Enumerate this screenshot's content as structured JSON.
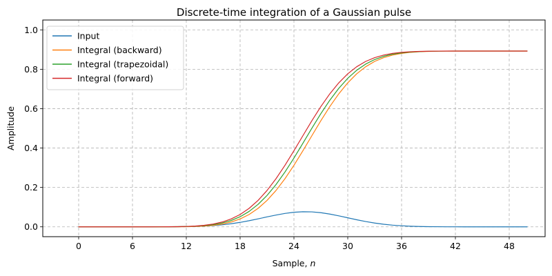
{
  "chart_data": {
    "type": "line",
    "title": "Discrete-time integration of a Gaussian pulse",
    "xlabel_prefix": "Sample, ",
    "xlabel_var": "n",
    "ylabel": "Amplitude",
    "xlim": [
      -4,
      52
    ],
    "ylim": [
      -0.05,
      1.05
    ],
    "xticks": [
      0,
      6,
      12,
      18,
      24,
      30,
      36,
      42,
      48
    ],
    "yticks": [
      0.0,
      0.2,
      0.4,
      0.6,
      0.8,
      1.0
    ],
    "grid": true,
    "legend_position": "top-left",
    "x": [
      0,
      1,
      2,
      3,
      4,
      5,
      6,
      7,
      8,
      9,
      10,
      11,
      12,
      13,
      14,
      15,
      16,
      17,
      18,
      19,
      20,
      21,
      22,
      23,
      24,
      25,
      26,
      27,
      28,
      29,
      30,
      31,
      32,
      33,
      34,
      35,
      36,
      37,
      38,
      39,
      40,
      41,
      42,
      43,
      44,
      45,
      46,
      47,
      48,
      49,
      50
    ],
    "series": [
      {
        "name": "Input",
        "color": "#1f77b4",
        "values": [
          0.0,
          0.0,
          0.0,
          0.0,
          0.0,
          0.0,
          0.0,
          0.0,
          0.0,
          0.0001,
          0.0002,
          0.0005,
          0.0011,
          0.0021,
          0.0038,
          0.0064,
          0.0102,
          0.0156,
          0.0226,
          0.031,
          0.0405,
          0.0504,
          0.0598,
          0.068,
          0.0739,
          0.0766,
          0.0759,
          0.0718,
          0.0648,
          0.0558,
          0.0459,
          0.0359,
          0.0269,
          0.0192,
          0.0131,
          0.0085,
          0.0053,
          0.0031,
          0.0017,
          0.0009,
          0.0005,
          0.0002,
          0.0001,
          0.0,
          0.0,
          0.0,
          0.0,
          0.0,
          0.0,
          0.0,
          0.0
        ]
      },
      {
        "name": "Integral (backward)",
        "color": "#ff7f0e",
        "values": [
          0.0,
          0.0,
          0.0,
          0.0,
          0.0,
          0.0,
          0.0,
          0.0,
          0.0,
          0.0,
          0.0001,
          0.0003,
          0.0008,
          0.0019,
          0.004,
          0.0078,
          0.0142,
          0.0244,
          0.04,
          0.0626,
          0.0936,
          0.1341,
          0.1845,
          0.2443,
          0.3123,
          0.3862,
          0.4628,
          0.5387,
          0.6105,
          0.6753,
          0.7311,
          0.777,
          0.8129,
          0.8398,
          0.859,
          0.8721,
          0.8806,
          0.8859,
          0.889,
          0.8907,
          0.8916,
          0.8921,
          0.8923,
          0.8924,
          0.8924,
          0.8924,
          0.8924,
          0.8924,
          0.8924,
          0.8924,
          0.8924
        ]
      },
      {
        "name": "Integral (trapezoidal)",
        "color": "#2ca02c",
        "values": [
          0.0,
          0.0,
          0.0,
          0.0,
          0.0,
          0.0,
          0.0,
          0.0,
          0.0,
          0.0001,
          0.0003,
          0.0008,
          0.0016,
          0.0032,
          0.0061,
          0.011,
          0.0193,
          0.0322,
          0.0513,
          0.0781,
          0.1139,
          0.1593,
          0.2144,
          0.2783,
          0.3492,
          0.4245,
          0.5008,
          0.5746,
          0.6429,
          0.7032,
          0.7541,
          0.795,
          0.8264,
          0.8494,
          0.8656,
          0.8764,
          0.8832,
          0.8874,
          0.8898,
          0.8912,
          0.8919,
          0.8922,
          0.8924,
          0.8924,
          0.8924,
          0.8924,
          0.8924,
          0.8924,
          0.8924,
          0.8924,
          0.8924
        ]
      },
      {
        "name": "Integral (forward)",
        "color": "#d62728",
        "values": [
          0.0,
          0.0,
          0.0,
          0.0,
          0.0,
          0.0,
          0.0,
          0.0,
          0.0,
          0.0001,
          0.0003,
          0.0008,
          0.0019,
          0.004,
          0.0078,
          0.0142,
          0.0244,
          0.04,
          0.0626,
          0.0936,
          0.1341,
          0.1845,
          0.2443,
          0.3123,
          0.3862,
          0.4628,
          0.5387,
          0.6105,
          0.6753,
          0.7311,
          0.777,
          0.8129,
          0.8398,
          0.859,
          0.8721,
          0.8806,
          0.8859,
          0.889,
          0.8907,
          0.8916,
          0.8921,
          0.8923,
          0.8924,
          0.8924,
          0.8924,
          0.8924,
          0.8924,
          0.8924,
          0.8924,
          0.8924,
          0.8924
        ]
      }
    ]
  }
}
